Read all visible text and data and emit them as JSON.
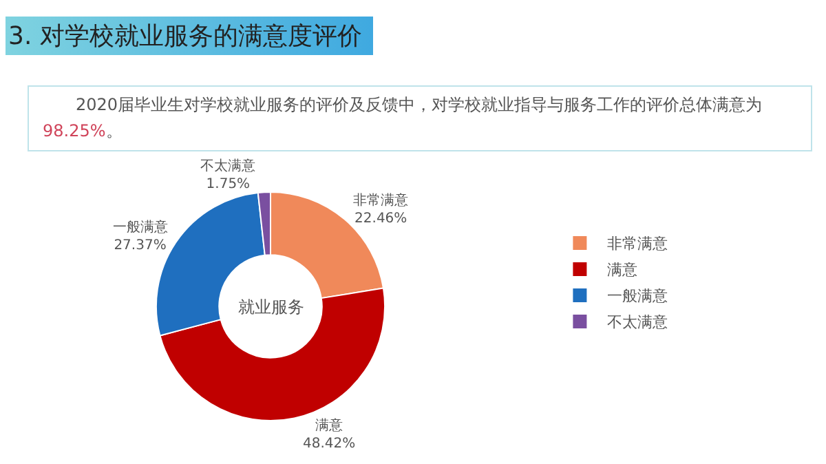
{
  "chart_data": {
    "type": "donut",
    "title": "3. 对学校就业服务的满意度评价",
    "subtitle": "2020届毕业生对学校就业服务的评价及反馈中，对学校就业指导与服务工作的评价总体满意为98.25%。",
    "annotations": [
      "就业服务"
    ],
    "categories": [
      "非常满意",
      "满意",
      "一般满意",
      "不太满意"
    ],
    "values": [
      22.46,
      48.42,
      27.37,
      1.75
    ],
    "colors": [
      "#f0895a",
      "#c00000",
      "#1f6fbf",
      "#7a4fa0"
    ],
    "value_labels": [
      "22.46%",
      "48.42%",
      "27.37%",
      "1.75%"
    ],
    "legend": "right"
  }
}
